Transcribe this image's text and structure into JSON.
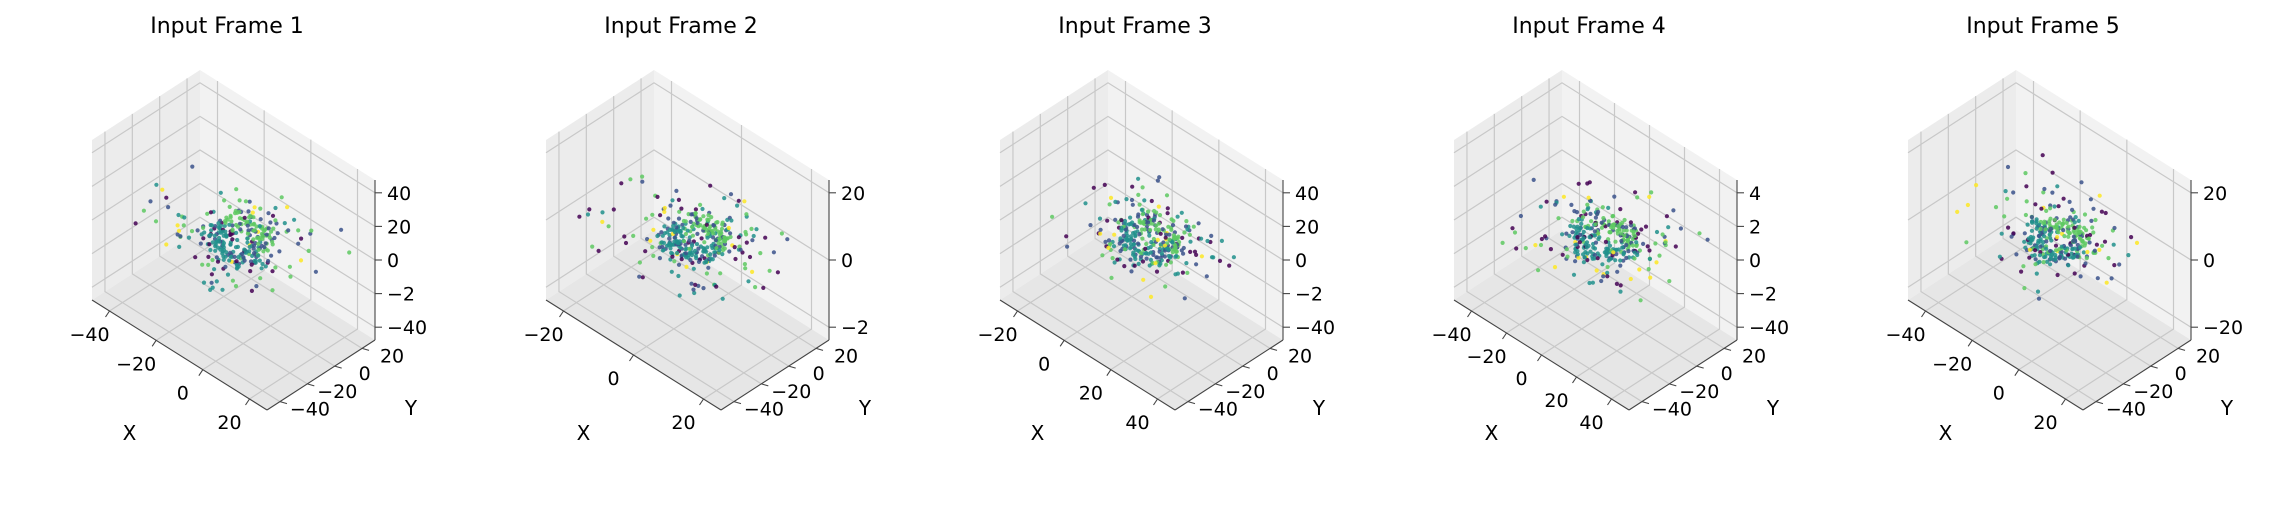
{
  "chart_data": [
    {
      "type": "scatter",
      "projection": "3d",
      "title": "Input Frame 1",
      "xlabel": "X",
      "ylabel": "Y",
      "zlabel": "",
      "x_ticks": [
        "−40",
        "−20",
        "0",
        "20"
      ],
      "y_ticks": [
        "−40",
        "−20",
        "0",
        "20"
      ],
      "z_ticks": [
        "−40",
        "−2",
        "0",
        "20",
        "40"
      ],
      "xlim": [
        -45,
        35
      ],
      "ylim": [
        -45,
        35
      ],
      "zlim": [
        -45,
        45
      ],
      "grid": true,
      "colormap": [
        "#440154",
        "#3b528b",
        "#21918c",
        "#5ec962",
        "#fde725"
      ],
      "seed": 11,
      "point_count": 320
    },
    {
      "type": "scatter",
      "projection": "3d",
      "title": "Input Frame 2",
      "xlabel": "X",
      "ylabel": "Y",
      "zlabel": "",
      "x_ticks": [
        "−20",
        "0",
        "20"
      ],
      "y_ticks": [
        "−40",
        "−20",
        "0",
        "20"
      ],
      "z_ticks": [
        "−2",
        "0",
        "20"
      ],
      "xlim": [
        -35,
        35
      ],
      "ylim": [
        -45,
        35
      ],
      "zlim": [
        -35,
        35
      ],
      "grid": true,
      "colormap": [
        "#440154",
        "#3b528b",
        "#21918c",
        "#5ec962",
        "#fde725"
      ],
      "seed": 23,
      "point_count": 360
    },
    {
      "type": "scatter",
      "projection": "3d",
      "title": "Input Frame 3",
      "xlabel": "X",
      "ylabel": "Y",
      "zlabel": "",
      "x_ticks": [
        "−20",
        "0",
        "20",
        "40"
      ],
      "y_ticks": [
        "−40",
        "−20",
        "0",
        "20"
      ],
      "z_ticks": [
        "−40",
        "−2",
        "0",
        "20",
        "40"
      ],
      "xlim": [
        -35,
        45
      ],
      "ylim": [
        -45,
        35
      ],
      "zlim": [
        -45,
        45
      ],
      "grid": true,
      "colormap": [
        "#440154",
        "#3b528b",
        "#21918c",
        "#5ec962",
        "#fde725"
      ],
      "seed": 37,
      "point_count": 330
    },
    {
      "type": "scatter",
      "projection": "3d",
      "title": "Input Frame 4",
      "xlabel": "X",
      "ylabel": "Y",
      "zlabel": "",
      "x_ticks": [
        "−40",
        "−20",
        "0",
        "20",
        "40"
      ],
      "y_ticks": [
        "−40",
        "−20",
        "0",
        "20"
      ],
      "z_ticks": [
        "−40",
        "−2",
        "0",
        "2",
        "4"
      ],
      "xlim": [
        -45,
        45
      ],
      "ylim": [
        -45,
        35
      ],
      "zlim": [
        -45,
        45
      ],
      "grid": true,
      "colormap": [
        "#440154",
        "#3b528b",
        "#21918c",
        "#5ec962",
        "#fde725"
      ],
      "seed": 41,
      "point_count": 340
    },
    {
      "type": "scatter",
      "projection": "3d",
      "title": "Input Frame 5",
      "xlabel": "X",
      "ylabel": "Y",
      "zlabel": "",
      "x_ticks": [
        "−40",
        "−20",
        "0",
        "20"
      ],
      "y_ticks": [
        "−40",
        "−20",
        "0",
        "20"
      ],
      "z_ticks": [
        "−20",
        "0",
        "20"
      ],
      "xlim": [
        -45,
        35
      ],
      "ylim": [
        -45,
        35
      ],
      "zlim": [
        -35,
        35
      ],
      "grid": true,
      "colormap": [
        "#440154",
        "#3b528b",
        "#21918c",
        "#5ec962",
        "#fde725"
      ],
      "seed": 53,
      "point_count": 330
    }
  ]
}
